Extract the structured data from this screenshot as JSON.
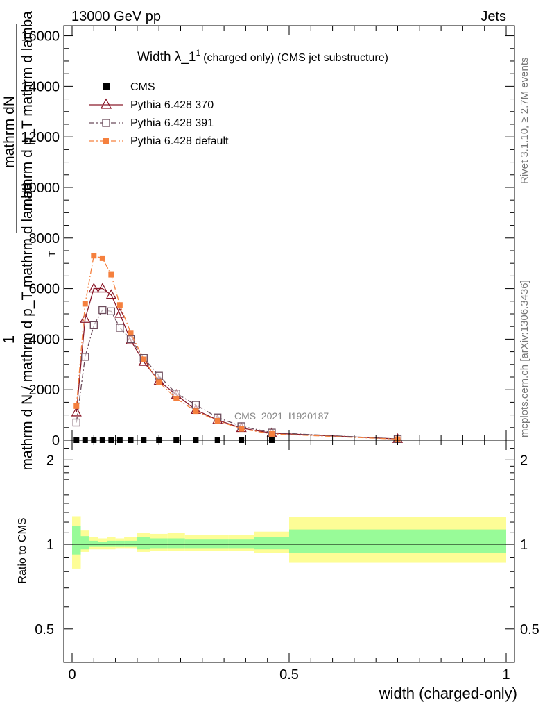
{
  "header": {
    "energy": "13000 GeV pp",
    "category": "Jets",
    "rivet": "Rivet 3.1.10, ≥ 2.7M events",
    "mcplots": "mcplots.cern.ch [arXiv:1306.3436]",
    "analysis": "CMS_2021_I1920187"
  },
  "colors": {
    "cms": "#000000",
    "p370": "#8b1a2b",
    "p391": "#6b4b5b",
    "pdef": "#f5803e",
    "band_outer": "#fdfd96",
    "band_inner": "#98fb98"
  },
  "chart_data": [
    {
      "type": "line",
      "title": "Width λ_1",
      "title_sup": "1",
      "title_suffix": "(charged only) (CMS jet substructure)",
      "ylabel_main": "1",
      "ylabel_lines": [
        "mathrm dN",
        "mathrm d p_T mathrm d lamba",
        "mathrm d N / mathrm d p_T mathrm d lamba"
      ],
      "ylabel_sub": "T",
      "xlabel": "width (charged-only)",
      "xlim": [
        0,
        1
      ],
      "ylim": [
        0,
        16400
      ],
      "yticks": [
        0,
        2000,
        4000,
        6000,
        8000,
        10000,
        12000,
        14000,
        16000
      ],
      "ytick_labels": [
        "0",
        "2000",
        "4000",
        "6000",
        "8000",
        "10000",
        "12000",
        "14000",
        "16000"
      ],
      "legend": [
        "CMS",
        "Pythia 6.428 370",
        "Pythia 6.428 391",
        "Pythia 6.428 default"
      ],
      "series": [
        {
          "name": "CMS",
          "x": [
            0.01,
            0.03,
            0.05,
            0.07,
            0.09,
            0.11,
            0.135,
            0.165,
            0.2,
            0.24,
            0.285,
            0.335,
            0.39,
            0.46,
            0.75
          ],
          "y": [
            0,
            0,
            0,
            0,
            0,
            0,
            0,
            0,
            0,
            0,
            0,
            0,
            0,
            0,
            0
          ]
        },
        {
          "name": "Pythia 6.428 370",
          "x": [
            0.01,
            0.03,
            0.05,
            0.07,
            0.09,
            0.11,
            0.135,
            0.165,
            0.2,
            0.24,
            0.285,
            0.335,
            0.39,
            0.46,
            0.75
          ],
          "y": [
            1100,
            4800,
            6000,
            6000,
            5750,
            5000,
            3950,
            3100,
            2350,
            1800,
            1200,
            800,
            480,
            280,
            50
          ]
        },
        {
          "name": "Pythia 6.428 391",
          "x": [
            0.01,
            0.03,
            0.05,
            0.07,
            0.09,
            0.11,
            0.135,
            0.165,
            0.2,
            0.24,
            0.285,
            0.335,
            0.39,
            0.46,
            0.75
          ],
          "y": [
            700,
            3300,
            4550,
            5150,
            5100,
            4450,
            4000,
            3250,
            2550,
            1850,
            1400,
            900,
            550,
            300,
            50
          ]
        },
        {
          "name": "Pythia 6.428 default",
          "x": [
            0.01,
            0.03,
            0.05,
            0.07,
            0.09,
            0.11,
            0.135,
            0.165,
            0.2,
            0.24,
            0.285,
            0.335,
            0.39,
            0.46,
            0.75
          ],
          "y": [
            1350,
            5400,
            7300,
            7200,
            6550,
            5350,
            4250,
            3200,
            2300,
            1650,
            1150,
            770,
            450,
            250,
            40
          ]
        }
      ]
    },
    {
      "type": "area",
      "ylabel": "Ratio to CMS",
      "xlim": [
        0,
        1
      ],
      "ylim": [
        0.38,
        2.35
      ],
      "yticks": [
        0.5,
        1,
        2
      ],
      "ytick_labels": [
        "0.5",
        "1",
        "2"
      ],
      "xticks": [
        0,
        0.5,
        1
      ],
      "xtick_labels": [
        "0",
        "0.5",
        "1"
      ],
      "reference_line": 1,
      "bins": [
        0,
        0.02,
        0.04,
        0.06,
        0.08,
        0.1,
        0.12,
        0.15,
        0.18,
        0.22,
        0.26,
        0.31,
        0.36,
        0.42,
        0.5,
        1.0
      ],
      "outer_band": {
        "lo": [
          0.82,
          0.94,
          0.96,
          0.96,
          0.96,
          0.97,
          0.97,
          0.94,
          0.95,
          0.95,
          0.95,
          0.95,
          0.95,
          0.93,
          0.86
        ],
        "hi": [
          1.26,
          1.12,
          1.06,
          1.05,
          1.06,
          1.05,
          1.06,
          1.1,
          1.09,
          1.1,
          1.08,
          1.08,
          1.08,
          1.11,
          1.25
        ]
      },
      "inner_band": {
        "lo": [
          0.92,
          0.96,
          0.98,
          0.98,
          0.98,
          0.98,
          0.98,
          0.96,
          0.97,
          0.97,
          0.97,
          0.97,
          0.97,
          0.96,
          0.93
        ],
        "hi": [
          1.16,
          1.07,
          1.03,
          1.02,
          1.03,
          1.03,
          1.03,
          1.06,
          1.05,
          1.05,
          1.04,
          1.04,
          1.04,
          1.06,
          1.13
        ]
      }
    }
  ]
}
